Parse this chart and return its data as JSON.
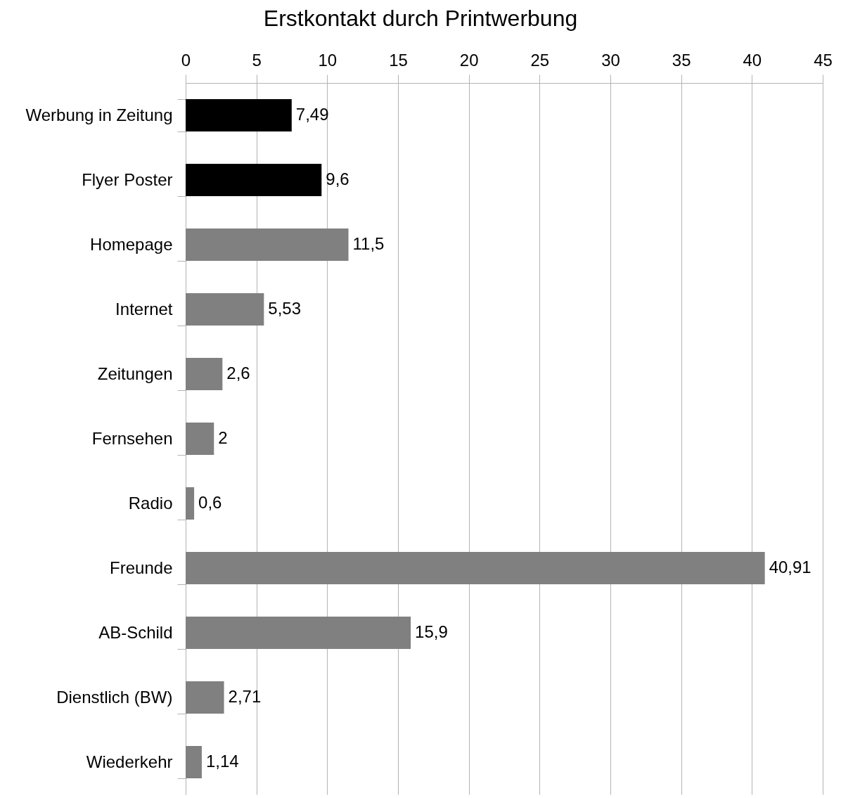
{
  "chart_data": {
    "type": "bar",
    "title": "Erstkontakt durch Printwerbung",
    "orientation": "horizontal",
    "categories": [
      "Werbung in Zeitung",
      "Flyer Poster",
      "Homepage",
      "Internet",
      "Zeitungen",
      "Fernsehen",
      "Radio",
      "Freunde",
      "AB-Schild",
      "Dienstlich (BW)",
      "Wiederkehr"
    ],
    "values": [
      7.49,
      9.6,
      11.5,
      5.53,
      2.6,
      2,
      0.6,
      40.91,
      15.9,
      2.71,
      1.14
    ],
    "value_labels": [
      "7,49",
      "9,6",
      "11,5",
      "5,53",
      "2,6",
      "2",
      "0,6",
      "40,91",
      "15,9",
      "2,71",
      "1,14"
    ],
    "colors": [
      "#000000",
      "#000000",
      "#808080",
      "#808080",
      "#808080",
      "#808080",
      "#808080",
      "#808080",
      "#808080",
      "#808080",
      "#808080"
    ],
    "xlim": [
      0,
      45
    ],
    "xticks": [
      0,
      5,
      10,
      15,
      20,
      25,
      30,
      35,
      40,
      45
    ],
    "grid": "x"
  }
}
